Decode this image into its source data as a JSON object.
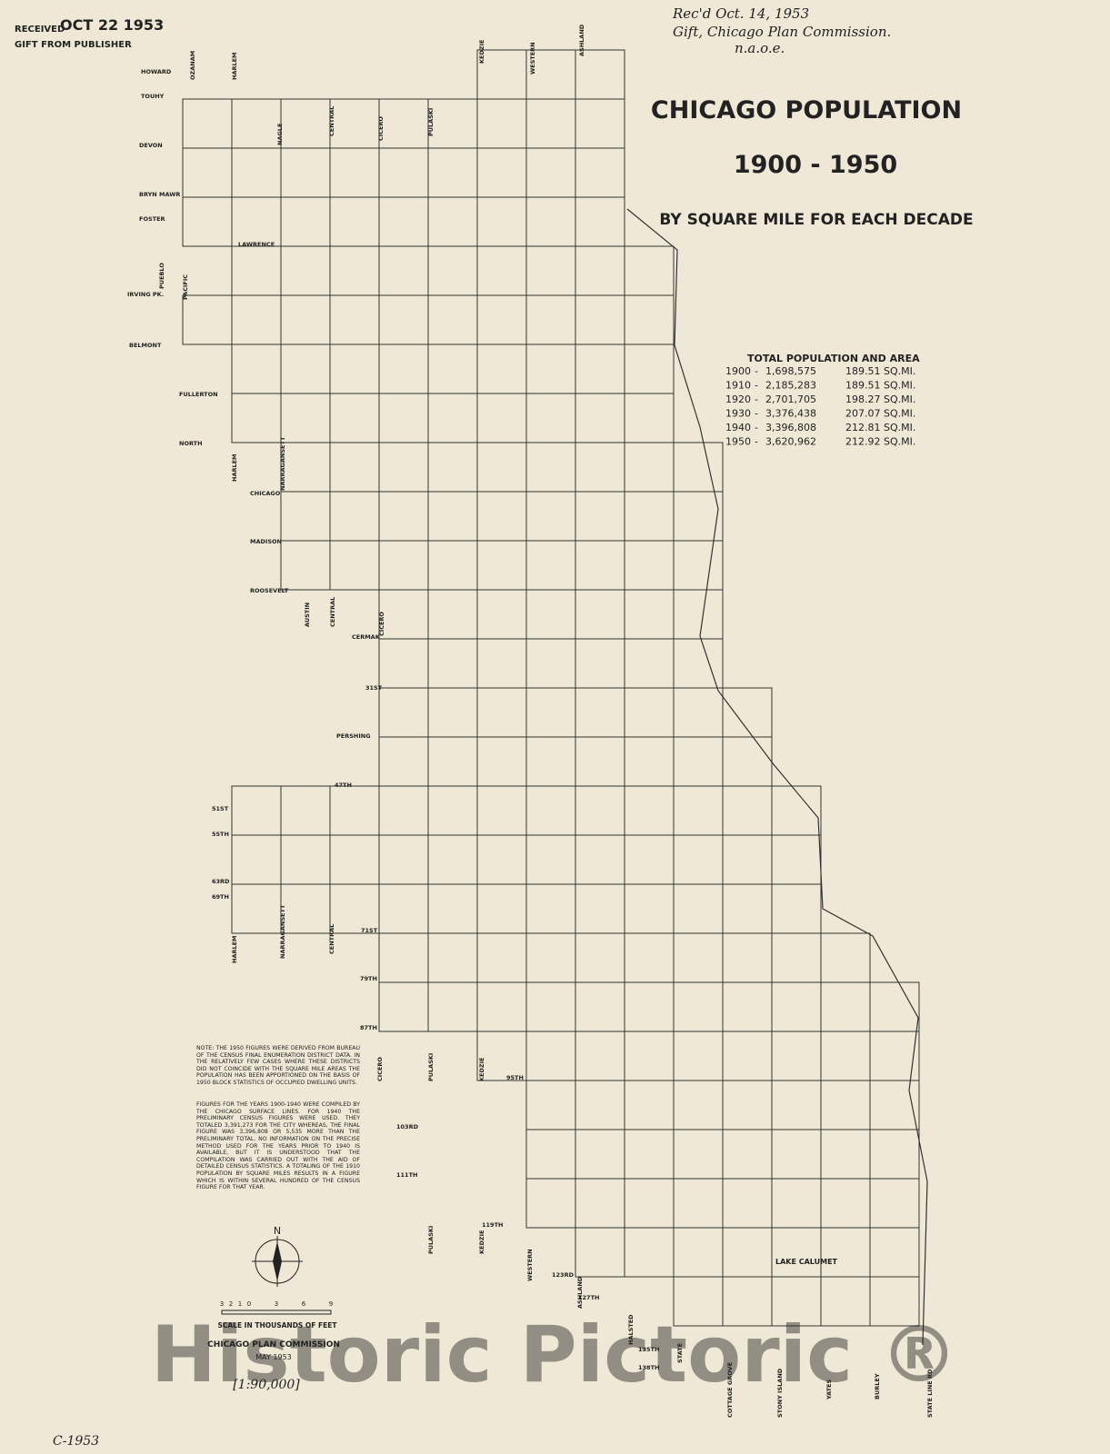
{
  "stamp": {
    "received": "RECEIVED",
    "date": "OCT 22 1953",
    "gift": "GIFT FROM PUBLISHER"
  },
  "handwritten": [
    "Rec'd Oct. 14, 1953",
    "Gift, Chicago Plan Commission.",
    "n.a.o.e."
  ],
  "header": {
    "title": "CHICAGO POPULATION",
    "years": "1900 - 1950",
    "subtitle": "BY SQUARE MILE FOR EACH DECADE"
  },
  "totals": {
    "title": "TOTAL POPULATION AND AREA",
    "rows": [
      [
        "1900",
        "1,698,575",
        "189.51 SQ.MI."
      ],
      [
        "1910",
        "2,185,283",
        "189.51 SQ.MI."
      ],
      [
        "1920",
        "2,701,705",
        "198.27 SQ.MI."
      ],
      [
        "1930",
        "3,376,438",
        "207.07 SQ.MI."
      ],
      [
        "1940",
        "3,396,808",
        "212.81 SQ.MI."
      ],
      [
        "1950",
        "3,620,962",
        "212.92 SQ.MI."
      ]
    ]
  },
  "streets_horizontal": [
    "HOWARD",
    "TOUHY",
    "DEVON",
    "BRYN MAWR",
    "FOSTER",
    "LAWRENCE",
    "IRVING PK.",
    "BELMONT",
    "FULLERTON",
    "NORTH",
    "CHICAGO",
    "MADISON",
    "ROOSEVELT",
    "CERMAK",
    "31ST",
    "PERSHING",
    "47TH",
    "51ST",
    "55TH",
    "63RD",
    "69TH",
    "71ST",
    "79TH",
    "87TH",
    "95TH",
    "103RD",
    "111TH",
    "119TH",
    "123RD",
    "127TH",
    "135TH",
    "138TH"
  ],
  "streets_vertical": [
    "OZANAM",
    "HARLEM",
    "KEDZIE",
    "WESTERN",
    "ASHLAND",
    "NAGLE",
    "CENTRAL",
    "CICERO",
    "PULASKI",
    "HARLEM",
    "NARRAGANSETT",
    "AUSTIN",
    "CENTRAL",
    "CICERO",
    "HARLEM",
    "NARRAGANSETT",
    "CENTRAL",
    "CICERO",
    "PULASKI",
    "KEDZIE",
    "PULASKI",
    "KEDZIE",
    "WESTERN",
    "ASHLAND",
    "HALSTED",
    "STATE",
    "COTTAGE GROVE",
    "STONY ISLAND",
    "YATES",
    "BURLEY",
    "STATE LINE RD",
    "PACIFIC",
    "PUEBLO"
  ],
  "lake": "LAKE CALUMET",
  "notes": [
    "NOTE: THE 1950 FIGURES WERE DERIVED FROM BUREAU OF THE CENSUS FINAL ENUMERATION DISTRICT DATA. IN THE RELATIVELY FEW CASES WHERE THESE DISTRICTS DID NOT COINCIDE WITH THE SQUARE MILE AREAS THE POPULATION HAS BEEN APPORTIONED ON THE BASIS OF 1950 BLOCK STATISTICS OF OCCUPIED DWELLING UNITS.",
    "FIGURES FOR THE YEARS 1900-1940 WERE COMPILED BY THE CHICAGO SURFACE LINES. FOR 1940 THE PRELIMINARY CENSUS FIGURES WERE USED. THEY TOTALED 3,391,273 FOR THE CITY WHEREAS, THE FINAL FIGURE WAS 3,396,808 OR 5,535 MORE THAN THE PRELIMINARY TOTAL. NO INFORMATION ON THE PRECISE METHOD USED FOR THE YEARS PRIOR TO 1940 IS AVAILABLE, BUT IT IS UNDERSTOOD THAT THE COMPILATION WAS CARRIED OUT WITH THE AID OF DETAILED CENSUS STATISTICS. A TOTALING OF THE 1910 POPULATION BY SQUARE MILES RESULTS IN A FIGURE WHICH IS WITHIN SEVERAL HUNDRED OF THE CENSUS FIGURE FOR THAT YEAR."
  ],
  "compass": "N",
  "scale": {
    "ticks": [
      "3",
      "2",
      "1",
      "0",
      "3",
      "6",
      "9"
    ],
    "label": "SCALE IN THOUSANDS OF FEET"
  },
  "credit": {
    "agency": "CHICAGO PLAN COMMISSION",
    "date": "MAY 1953",
    "scale_note": "[1:90,000]"
  },
  "catalog": [
    "C-1953"
  ],
  "watermark": "Historic Pictoric ®"
}
